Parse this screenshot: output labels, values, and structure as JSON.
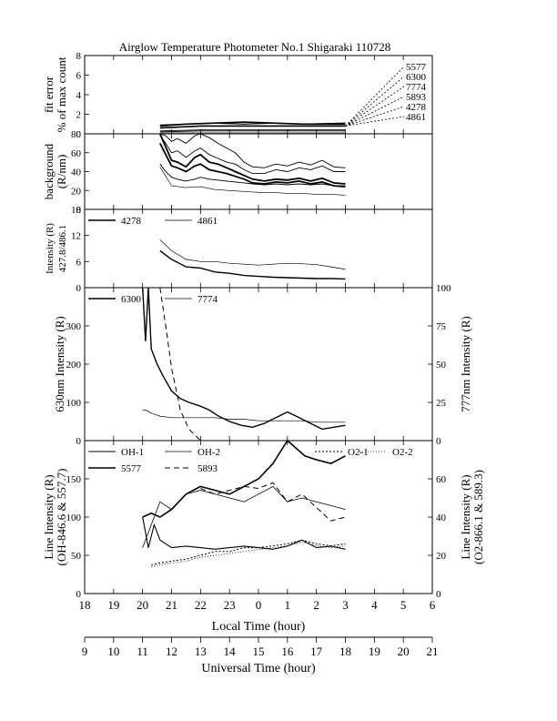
{
  "title": "Airglow Temperature Photometer No.1   Shigaraki   110728",
  "chart_data": [
    {
      "type": "line",
      "panel": "fit-error",
      "ylabel": "fit error",
      "ylabel2": "% of max count",
      "ylim": [
        0,
        8
      ],
      "yticks": [
        "0",
        "2",
        "4",
        "6",
        "8"
      ],
      "legend": [
        "5577",
        "6300",
        "7774",
        "5893",
        "4278",
        "4861"
      ],
      "series": [
        {
          "name": "5577",
          "x": [
            20.6,
            22,
            23,
            24,
            25,
            26,
            27
          ],
          "y": [
            0.6,
            0.8,
            0.8,
            0.8,
            0.8,
            0.8,
            0.8
          ]
        },
        {
          "name": "6300",
          "x": [
            20.6,
            21.5,
            22.5,
            23.5,
            24.5,
            25.5,
            26.5,
            27
          ],
          "y": [
            0.8,
            1.0,
            1.1,
            1.2,
            1.1,
            1.0,
            1.0,
            1.0
          ]
        },
        {
          "name": "7774",
          "x": [
            20.6,
            22,
            24,
            26,
            27
          ],
          "y": [
            0.2,
            0.3,
            0.3,
            0.3,
            0.3
          ]
        },
        {
          "name": "5893",
          "x": [
            20.6,
            22,
            24,
            26,
            27
          ],
          "y": [
            0.3,
            0.4,
            0.4,
            0.4,
            0.4
          ]
        },
        {
          "name": "4278",
          "x": [
            20.6,
            21.5,
            22.5,
            23.5,
            24.5,
            25.5,
            27
          ],
          "y": [
            0.9,
            1.0,
            1.1,
            1.0,
            1.1,
            1.0,
            1.1
          ]
        },
        {
          "name": "4861",
          "x": [
            20.6,
            22,
            24,
            26,
            27
          ],
          "y": [
            0.1,
            0.1,
            0.1,
            0.1,
            0.1
          ]
        }
      ]
    },
    {
      "type": "line",
      "panel": "background",
      "ylabel": "background",
      "ylabel2": "(R/nm)",
      "ylim": [
        0,
        80
      ],
      "yticks": [
        "0",
        "20",
        "40",
        "60",
        "80"
      ],
      "series": [
        {
          "x": [
            20.6,
            20.8,
            21.0,
            21.2,
            21.5,
            21.8,
            22.0,
            22.3,
            22.6,
            22.9,
            23.2,
            23.5,
            23.8,
            24.2,
            24.6,
            25.0,
            25.4,
            25.8,
            26.2,
            26.6,
            27.0
          ],
          "y": [
            80,
            78,
            72,
            75,
            70,
            78,
            82,
            76,
            70,
            65,
            60,
            50,
            45,
            44,
            48,
            46,
            50,
            47,
            52,
            45,
            44
          ]
        },
        {
          "x": [
            20.6,
            20.8,
            21.0,
            21.2,
            21.5,
            21.8,
            22.0,
            22.3,
            22.6,
            22.9,
            23.2,
            23.5,
            23.8,
            24.2,
            24.6,
            25.0,
            25.4,
            25.8,
            26.2,
            26.6,
            27.0
          ],
          "y": [
            78,
            70,
            60,
            62,
            55,
            62,
            65,
            58,
            54,
            50,
            48,
            42,
            38,
            38,
            42,
            40,
            44,
            42,
            46,
            40,
            40
          ]
        },
        {
          "x": [
            20.6,
            20.8,
            21.0,
            21.2,
            21.5,
            21.8,
            22.0,
            22.3,
            22.6,
            22.9,
            23.2,
            23.5,
            23.8,
            24.2,
            24.6,
            25.0,
            25.4,
            25.8,
            26.2,
            26.6,
            27.0
          ],
          "y": [
            80,
            66,
            52,
            50,
            45,
            55,
            58,
            50,
            48,
            44,
            40,
            36,
            32,
            30,
            32,
            31,
            33,
            30,
            33,
            28,
            27
          ]
        },
        {
          "x": [
            20.6,
            20.8,
            21.0,
            21.2,
            21.5,
            21.8,
            22.0,
            22.3,
            22.6,
            22.9,
            23.2,
            23.5,
            23.8,
            24.2,
            24.6,
            25.0,
            25.4,
            25.8,
            26.2,
            26.6,
            27.0
          ],
          "y": [
            70,
            58,
            46,
            44,
            40,
            46,
            48,
            42,
            40,
            38,
            35,
            32,
            28,
            27,
            29,
            28,
            30,
            27,
            29,
            25,
            24
          ]
        },
        {
          "x": [
            20.6,
            20.8,
            21.0,
            21.2,
            21.5,
            21.8,
            22.0,
            22.3,
            22.6,
            22.9,
            23.2,
            23.5,
            23.8,
            24.2,
            24.6,
            25.0,
            25.4,
            25.8,
            26.2,
            26.6,
            27.0
          ],
          "y": [
            48,
            40,
            34,
            32,
            30,
            32,
            34,
            32,
            31,
            30,
            29,
            28,
            27,
            26,
            27,
            26,
            27,
            26,
            27,
            25,
            25
          ]
        },
        {
          "x": [
            20.6,
            21.0,
            21.5,
            22.0,
            22.5,
            23.0,
            23.5,
            24.0,
            24.5,
            25.0,
            25.5,
            26.0,
            26.5,
            27.0
          ],
          "y": [
            45,
            25,
            23,
            24,
            21,
            20,
            19,
            18,
            18,
            17,
            17,
            16,
            16,
            15
          ]
        }
      ]
    },
    {
      "type": "line",
      "panel": "blue-lines",
      "ylabel": "Intensity (R)",
      "ylabel2": "427.8/486.1",
      "ylim": [
        0,
        18
      ],
      "yticks": [
        "0",
        "6",
        "12",
        "18"
      ],
      "legend": [
        "4278",
        "4861"
      ],
      "series": [
        {
          "name": "4278",
          "x": [
            20.6,
            21.0,
            21.5,
            22.0,
            22.5,
            23.0,
            23.5,
            24.0,
            24.5,
            25.0,
            25.5,
            26.0,
            26.5,
            27.0
          ],
          "y": [
            8.5,
            6.5,
            4.8,
            4.5,
            3.6,
            3.3,
            2.8,
            2.6,
            2.4,
            2.3,
            2.2,
            2.1,
            2.1,
            2.0
          ]
        },
        {
          "name": "4861",
          "x": [
            20.6,
            21.0,
            21.5,
            22.0,
            22.5,
            23.0,
            23.5,
            24.0,
            24.5,
            25.0,
            25.5,
            26.0,
            26.5,
            27.0
          ],
          "y": [
            11,
            8.5,
            6.5,
            6.0,
            6.0,
            5.6,
            5.4,
            5.2,
            5.4,
            5.6,
            5.5,
            5.3,
            4.8,
            4.2
          ]
        }
      ]
    },
    {
      "type": "line",
      "panel": "red-line",
      "ylabel": "630nm Intensity (R)",
      "ylabel_right": "777nm Intensity (R)",
      "ylim": [
        0,
        400
      ],
      "ylim_right": [
        0,
        100
      ],
      "yticks": [
        "0",
        "100",
        "200",
        "300"
      ],
      "yticks_right": [
        "0",
        "25",
        "50",
        "75",
        "100"
      ],
      "legend": [
        "6300",
        "7774"
      ],
      "series": [
        {
          "name": "6300",
          "x": [
            20.0,
            20.1,
            20.2,
            20.3,
            20.5,
            20.7,
            21.0,
            21.3,
            21.6,
            22.0,
            22.3,
            22.6,
            23.0,
            23.4,
            23.8,
            24.2,
            24.6,
            25.0,
            25.4,
            25.8,
            26.2,
            26.6,
            27.0
          ],
          "y": [
            400,
            260,
            400,
            240,
            200,
            170,
            130,
            110,
            100,
            90,
            80,
            65,
            50,
            40,
            35,
            45,
            60,
            75,
            60,
            45,
            30,
            35,
            40
          ]
        },
        {
          "name": "7774",
          "x": [
            20.0,
            20.1,
            20.3,
            20.6,
            21.0,
            21.5,
            22.0,
            22.5,
            23.0,
            23.5,
            24.0,
            24.5,
            25.0,
            25.5,
            26.0,
            26.5,
            27.0
          ],
          "y": [
            20,
            20,
            18,
            16,
            15,
            15,
            15,
            15,
            14,
            14,
            13,
            13,
            13,
            13,
            12,
            12,
            12
          ]
        },
        {
          "name": "5893-trace",
          "x": [
            20.6,
            20.8,
            21.0,
            21.3,
            21.6,
            22.0
          ],
          "y": [
            400,
            300,
            190,
            80,
            30,
            0
          ]
        }
      ]
    },
    {
      "type": "line",
      "panel": "line-intensity",
      "ylabel": "Line Intensity (R)",
      "ylabel2": "(OH-846.6 & 557.7)",
      "ylabel_right": "Line Intensity (R)",
      "ylabel_right2": "(O2-866.1 & 589.3)",
      "ylim": [
        0,
        200
      ],
      "ylim_right": [
        0,
        80
      ],
      "yticks": [
        "0",
        "50",
        "100",
        "150"
      ],
      "yticks_right": [
        "0",
        "20",
        "40",
        "60"
      ],
      "legend": [
        "OH-1",
        "OH-2",
        "O2-1",
        "O2-2",
        "5577",
        "5893"
      ],
      "series": [
        {
          "name": "OH-1",
          "x": [
            20.0,
            20.2,
            20.4,
            20.6,
            21.0,
            21.5,
            22.0,
            22.5,
            23.0,
            23.5,
            24.0,
            24.5,
            25.0,
            25.5,
            26.0,
            26.5,
            27.0
          ],
          "y": [
            100,
            60,
            90,
            70,
            60,
            62,
            60,
            58,
            60,
            62,
            60,
            58,
            62,
            70,
            60,
            62,
            58
          ]
        },
        {
          "name": "OH-2",
          "x": [
            20.0,
            20.3,
            20.6,
            21.0,
            21.5,
            22.0,
            22.5,
            23.0,
            23.5,
            24.0,
            24.5,
            25.0,
            25.5,
            26.0,
            26.5,
            27.0
          ],
          "y": [
            60,
            90,
            120,
            110,
            130,
            135,
            130,
            125,
            120,
            130,
            140,
            120,
            125,
            120,
            115,
            110
          ]
        },
        {
          "name": "O2-1",
          "x": [
            20.3,
            20.6,
            21.0,
            21.5,
            22.0,
            22.5,
            23.0,
            23.5,
            24.0,
            24.5,
            25.0,
            25.5,
            26.0,
            26.5,
            27.0
          ],
          "y": [
            15,
            16,
            17,
            18,
            20,
            22,
            22,
            24,
            24,
            25,
            26,
            28,
            26,
            25,
            26
          ]
        },
        {
          "name": "O2-2",
          "x": [
            20.3,
            20.6,
            21.0,
            21.5,
            22.0,
            22.5,
            23.0,
            23.5,
            24.0,
            24.5,
            25.0,
            25.5,
            26.0,
            26.5,
            27.0
          ],
          "y": [
            14,
            15,
            16,
            17,
            19,
            20,
            21,
            22,
            23,
            24,
            25,
            27,
            25,
            24,
            25
          ]
        },
        {
          "name": "5577",
          "x": [
            20.0,
            20.3,
            20.6,
            21.0,
            21.5,
            22.0,
            22.5,
            23.0,
            23.5,
            24.0,
            24.5,
            25.0,
            25.3,
            25.6,
            26.0,
            26.5,
            27.0
          ],
          "y": [
            100,
            105,
            100,
            110,
            130,
            140,
            135,
            130,
            140,
            150,
            170,
            200,
            190,
            180,
            175,
            170,
            180
          ]
        },
        {
          "name": "5893",
          "x": [
            22.0,
            22.5,
            23.0,
            23.5,
            24.0,
            24.5,
            25.0,
            25.5,
            26.0,
            26.5,
            27.0
          ],
          "y": [
            55,
            52,
            54,
            56,
            55,
            58,
            48,
            52,
            45,
            38,
            40
          ]
        }
      ]
    }
  ],
  "xaxis_local": {
    "label": "Local Time (hour)",
    "ticks": [
      "18",
      "19",
      "20",
      "21",
      "22",
      "23",
      "0",
      "1",
      "2",
      "3",
      "4",
      "5",
      "6"
    ]
  },
  "xaxis_ut": {
    "label": "Universal Time (hour)",
    "ticks": [
      "9",
      "10",
      "11",
      "12",
      "13",
      "14",
      "15",
      "16",
      "17",
      "18",
      "19",
      "20",
      "21"
    ]
  }
}
